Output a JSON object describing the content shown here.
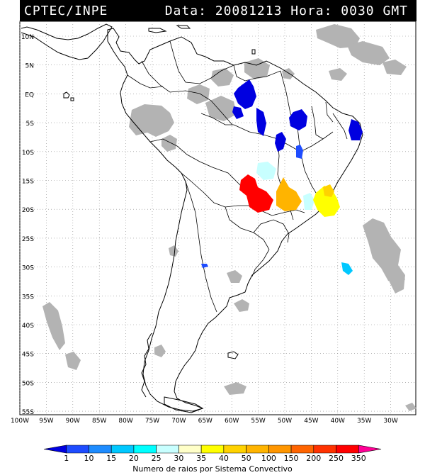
{
  "header": {
    "source": "CPTEC/INPE",
    "datetime": "Data: 20081213 Hora: 0030 GMT"
  },
  "map": {
    "lat_labels": [
      "10N",
      "5N",
      "EQ",
      "5S",
      "10S",
      "15S",
      "20S",
      "25S",
      "30S",
      "35S",
      "40S",
      "45S",
      "50S",
      "55S"
    ],
    "lon_labels": [
      "100W",
      "95W",
      "90W",
      "85W",
      "80W",
      "75W",
      "70W",
      "65W",
      "60W",
      "55W",
      "50W",
      "45W",
      "40W",
      "35W",
      "30W"
    ],
    "cloud_color": "#b3b3b3",
    "grid_style": "dotted"
  },
  "legend": {
    "ticks": [
      "1",
      "10",
      "15",
      "20",
      "25",
      "30",
      "35",
      "40",
      "50",
      "100",
      "150",
      "200",
      "250",
      "350"
    ],
    "colors": [
      "#0000e0",
      "#1e4cff",
      "#1e8cff",
      "#00c8ff",
      "#00ffff",
      "#c8ffff",
      "#ffffc8",
      "#ffff00",
      "#ffd200",
      "#ffb400",
      "#ff9600",
      "#ff6400",
      "#ff3200",
      "#ff0000",
      "#ff0096"
    ],
    "label": "Numero de raios por Sistema Convectivo"
  }
}
